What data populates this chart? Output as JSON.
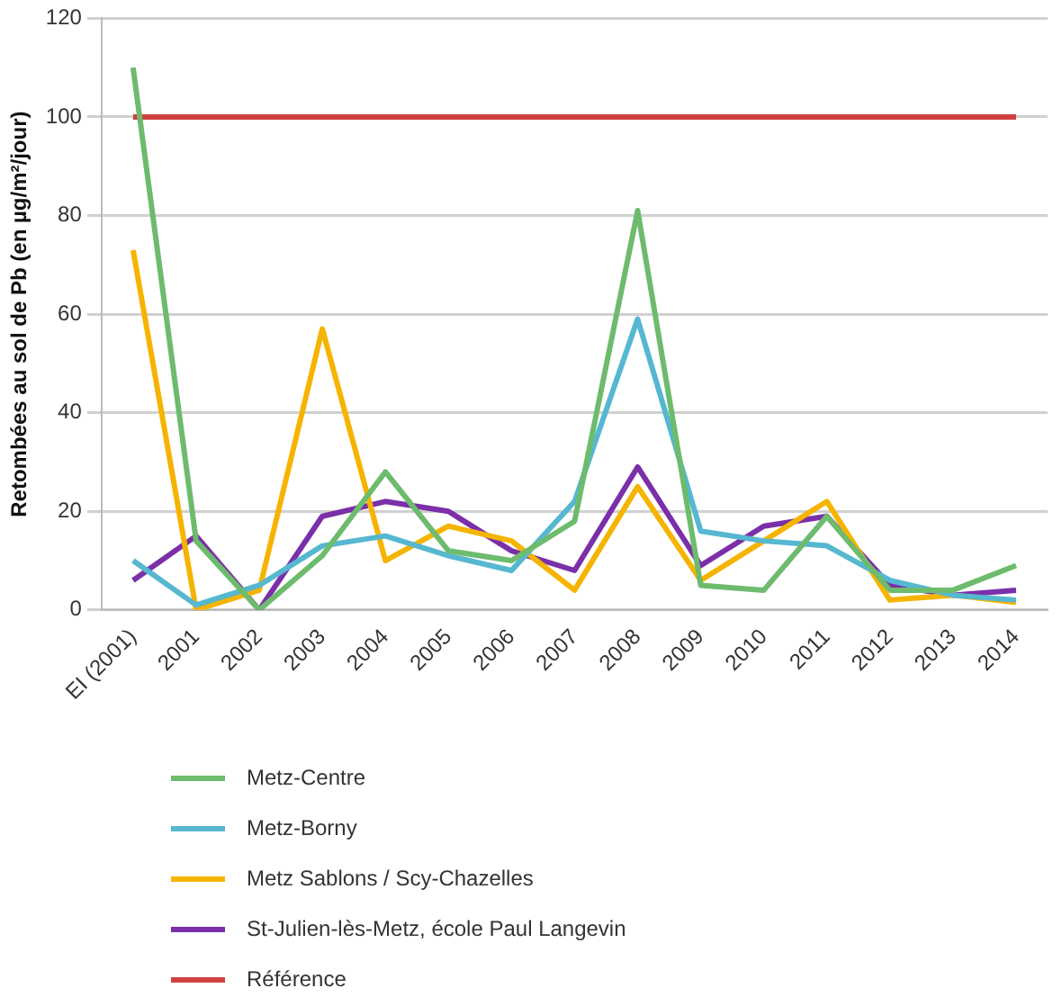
{
  "chart_data": {
    "type": "line",
    "ylabel": "Retombées au sol de Pb (en µg/m²/jour)",
    "categories": [
      "EI (2001)",
      "2001",
      "2002",
      "2003",
      "2004",
      "2005",
      "2006",
      "2007",
      "2008",
      "2009",
      "2010",
      "2011",
      "2012",
      "2013",
      "2014"
    ],
    "series": [
      {
        "name": "Metz-Centre",
        "color": "#6dbb6d",
        "values": [
          110,
          14,
          0,
          11,
          28,
          12,
          10,
          18,
          81,
          5,
          4,
          19,
          4,
          4,
          9
        ]
      },
      {
        "name": "Metz-Borny",
        "color": "#56b7d0",
        "values": [
          10,
          1,
          5,
          13,
          15,
          11,
          8,
          22,
          59,
          16,
          14,
          13,
          6,
          3,
          2
        ]
      },
      {
        "name": "Metz Sablons / Scy-Chazelles",
        "color": "#f5b400",
        "values": [
          73,
          0,
          4,
          57,
          10,
          17,
          14,
          4,
          25,
          6,
          14,
          22,
          2,
          3,
          1.5
        ]
      },
      {
        "name": "St-Julien-lès-Metz, école Paul Langevin",
        "color": "#7b2fa8",
        "values": [
          6,
          15,
          0,
          19,
          22,
          20,
          12,
          8,
          29,
          9,
          17,
          19,
          5,
          3,
          4
        ]
      },
      {
        "name": "Référence",
        "color": "#d04040",
        "values": [
          100,
          100,
          100,
          100,
          100,
          100,
          100,
          100,
          100,
          100,
          100,
          100,
          100,
          100,
          100
        ]
      }
    ],
    "ylim": [
      0,
      120
    ],
    "yticks": [
      0,
      20,
      40,
      60,
      80,
      100,
      120
    ],
    "grid": "y",
    "legend": "bottom",
    "marker": "none",
    "line_style": "solid"
  }
}
